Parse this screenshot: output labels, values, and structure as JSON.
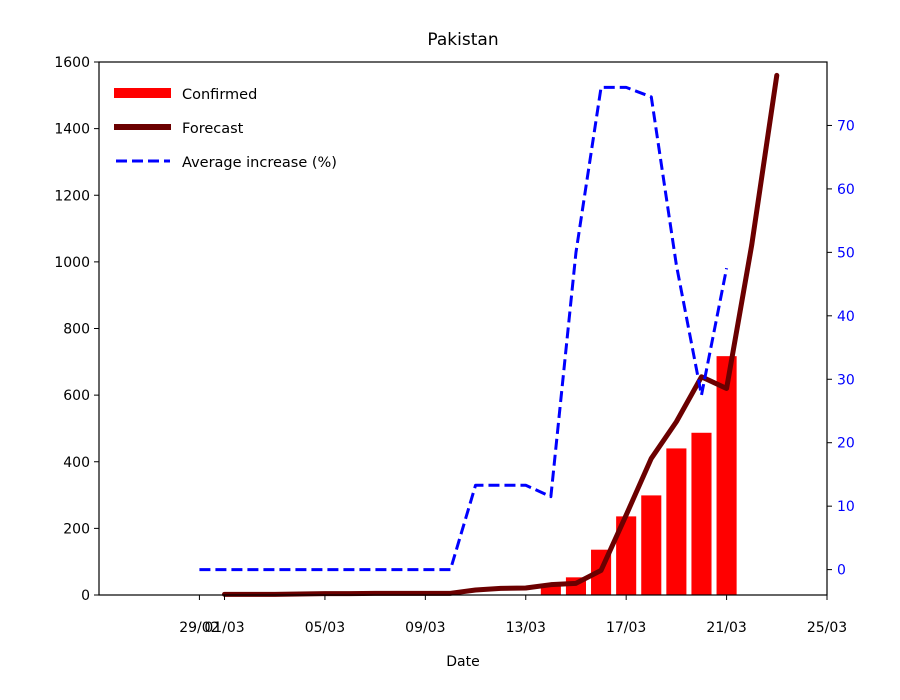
{
  "chart_data": {
    "type": "bar",
    "title": "Pakistan",
    "xlabel": "Date",
    "ylabel": "",
    "ylabel_right": "",
    "x_axis": {
      "range": [
        "2020-02-25",
        "2020-03-25"
      ],
      "tick_dates": [
        "2020-02-29",
        "2020-03-01",
        "2020-03-05",
        "2020-03-09",
        "2020-03-13",
        "2020-03-17",
        "2020-03-21",
        "2020-03-25"
      ],
      "tick_labels": [
        "29/02",
        "01/03",
        "05/03",
        "09/03",
        "13/03",
        "17/03",
        "21/03",
        "25/03"
      ]
    },
    "y_left": {
      "range": [
        0,
        1600
      ],
      "ticks": [
        0,
        200,
        400,
        600,
        800,
        1000,
        1200,
        1400,
        1600
      ],
      "color": "#000000"
    },
    "y_right": {
      "range": [
        -4,
        80
      ],
      "ticks": [
        0,
        10,
        20,
        30,
        40,
        50,
        60,
        70
      ],
      "color": "#0000ff"
    },
    "grid": false,
    "legend": {
      "position": "top-left",
      "entries": [
        {
          "label": "Confirmed",
          "series": "confirmed"
        },
        {
          "label": "Forecast",
          "series": "forecast"
        },
        {
          "label": "Average increase (%)",
          "series": "average_increase"
        }
      ]
    },
    "series": [
      {
        "key": "confirmed",
        "name": "Confirmed",
        "kind": "bar",
        "axis": "left",
        "color": "#ff0000",
        "points": [
          {
            "x": "2020-03-14",
            "y": 28
          },
          {
            "x": "2020-03-15",
            "y": 53
          },
          {
            "x": "2020-03-16",
            "y": 136
          },
          {
            "x": "2020-03-17",
            "y": 236
          },
          {
            "x": "2020-03-18",
            "y": 299
          },
          {
            "x": "2020-03-19",
            "y": 440
          },
          {
            "x": "2020-03-20",
            "y": 487
          },
          {
            "x": "2020-03-21",
            "y": 717
          }
        ]
      },
      {
        "key": "forecast",
        "name": "Forecast",
        "kind": "line",
        "axis": "left",
        "color": "#6b0000",
        "points": [
          {
            "x": "2020-03-01",
            "y": 2
          },
          {
            "x": "2020-03-02",
            "y": 2
          },
          {
            "x": "2020-03-03",
            "y": 2
          },
          {
            "x": "2020-03-04",
            "y": 3
          },
          {
            "x": "2020-03-05",
            "y": 4
          },
          {
            "x": "2020-03-06",
            "y": 4
          },
          {
            "x": "2020-03-07",
            "y": 5
          },
          {
            "x": "2020-03-08",
            "y": 5
          },
          {
            "x": "2020-03-09",
            "y": 5
          },
          {
            "x": "2020-03-10",
            "y": 5
          },
          {
            "x": "2020-03-11",
            "y": 15
          },
          {
            "x": "2020-03-12",
            "y": 20
          },
          {
            "x": "2020-03-13",
            "y": 21
          },
          {
            "x": "2020-03-14",
            "y": 31
          },
          {
            "x": "2020-03-15",
            "y": 35
          },
          {
            "x": "2020-03-16",
            "y": 74
          },
          {
            "x": "2020-03-17",
            "y": 240
          },
          {
            "x": "2020-03-18",
            "y": 410
          },
          {
            "x": "2020-03-19",
            "y": 520
          },
          {
            "x": "2020-03-20",
            "y": 655
          },
          {
            "x": "2020-03-21",
            "y": 620
          },
          {
            "x": "2020-03-22",
            "y": 1050
          },
          {
            "x": "2020-03-23",
            "y": 1560
          }
        ]
      },
      {
        "key": "average_increase",
        "name": "Average increase (%)",
        "kind": "line",
        "axis": "right",
        "color": "#0000ff",
        "dashed": true,
        "points": [
          {
            "x": "2020-02-29",
            "y": 0
          },
          {
            "x": "2020-03-01",
            "y": 0
          },
          {
            "x": "2020-03-02",
            "y": 0
          },
          {
            "x": "2020-03-03",
            "y": 0
          },
          {
            "x": "2020-03-04",
            "y": 0
          },
          {
            "x": "2020-03-05",
            "y": 0
          },
          {
            "x": "2020-03-06",
            "y": 0
          },
          {
            "x": "2020-03-07",
            "y": 0
          },
          {
            "x": "2020-03-08",
            "y": 0
          },
          {
            "x": "2020-03-09",
            "y": 0
          },
          {
            "x": "2020-03-10",
            "y": 0
          },
          {
            "x": "2020-03-11",
            "y": 13.3
          },
          {
            "x": "2020-03-12",
            "y": 13.3
          },
          {
            "x": "2020-03-13",
            "y": 13.3
          },
          {
            "x": "2020-03-14",
            "y": 11.5
          },
          {
            "x": "2020-03-15",
            "y": 50
          },
          {
            "x": "2020-03-16",
            "y": 76
          },
          {
            "x": "2020-03-17",
            "y": 76
          },
          {
            "x": "2020-03-18",
            "y": 74.5
          },
          {
            "x": "2020-03-19",
            "y": 48
          },
          {
            "x": "2020-03-20",
            "y": 27.5
          },
          {
            "x": "2020-03-21",
            "y": 47.5
          }
        ]
      }
    ]
  }
}
